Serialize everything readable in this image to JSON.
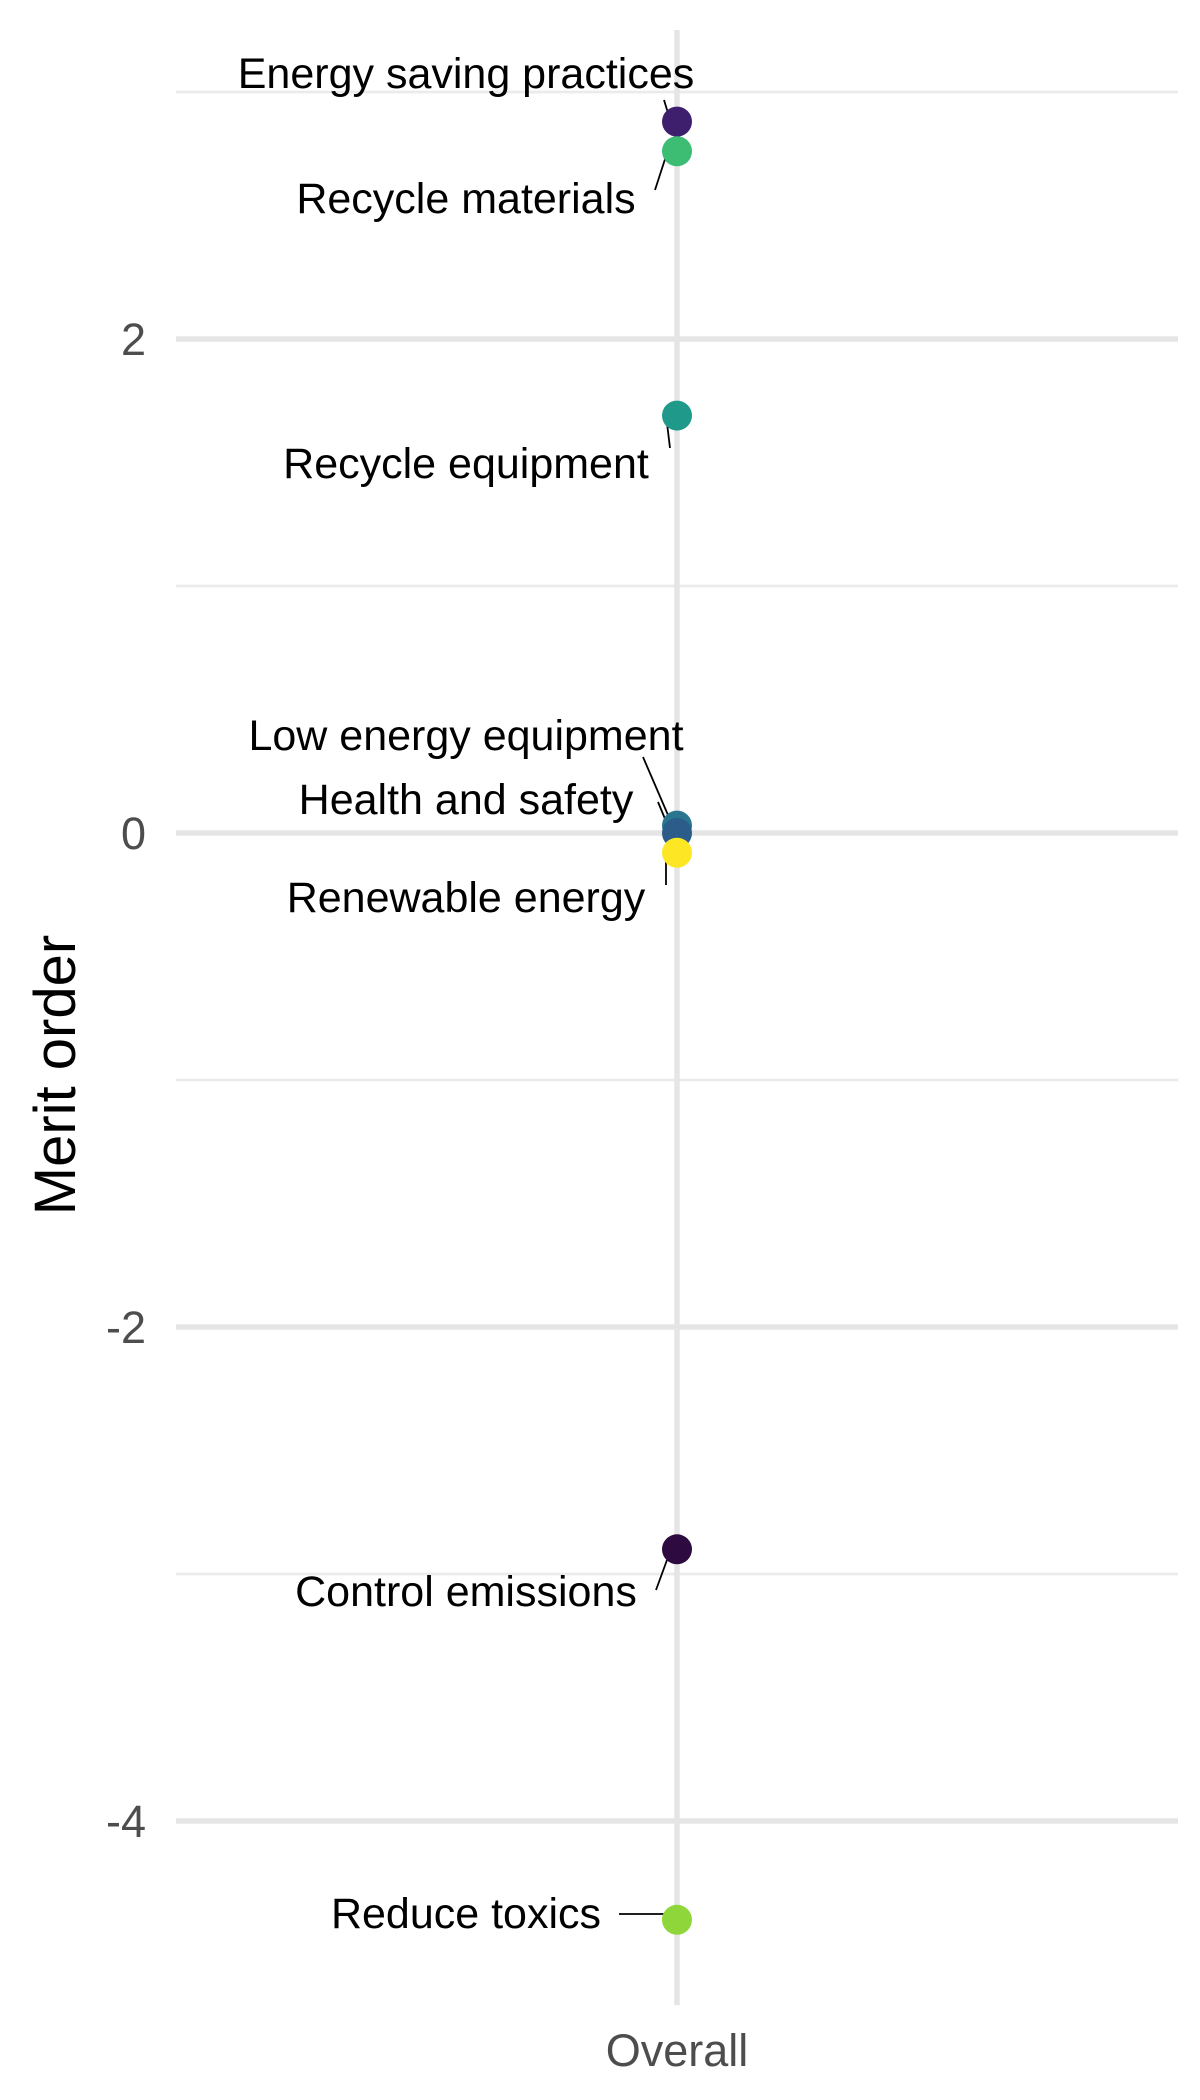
{
  "chart_data": {
    "type": "scatter",
    "title": "",
    "xlabel": "",
    "ylabel": "Merit order",
    "categories": [
      "Overall"
    ],
    "ylim": [
      -4.8,
      3.2
    ],
    "y_ticks": [
      -4,
      -2,
      0,
      2
    ],
    "y_tick_labels": [
      "-4",
      "-2",
      "0",
      "2"
    ],
    "grid": true,
    "legend": "none",
    "points": [
      {
        "label": "Energy saving practices",
        "x": "Overall",
        "y": 2.88,
        "color": "#3e1f6e"
      },
      {
        "label": "Recycle materials",
        "x": "Overall",
        "y": 2.76,
        "color": "#3dbc74"
      },
      {
        "label": "Recycle equipment",
        "x": "Overall",
        "y": 1.69,
        "color": "#1f9a8a"
      },
      {
        "label": "Low energy equipment",
        "x": "Overall",
        "y": 0.03,
        "color": "#2a768e"
      },
      {
        "label": "Health and safety",
        "x": "Overall",
        "y": 0.0,
        "color": "#2b5c8a"
      },
      {
        "label": "Renewable energy",
        "x": "Overall",
        "y": -0.08,
        "color": "#fde725"
      },
      {
        "label": "Control emissions",
        "x": "Overall",
        "y": -2.9,
        "color": "#2d0a3f"
      },
      {
        "label": "Reduce toxics",
        "x": "Overall",
        "y": -4.4,
        "color": "#8fd63a"
      }
    ]
  }
}
